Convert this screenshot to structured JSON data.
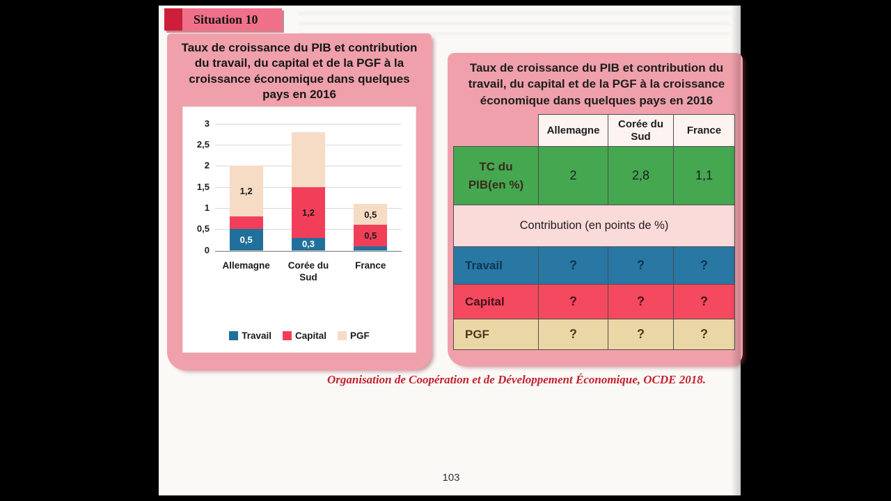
{
  "page": {
    "badge_label": "Situation 10",
    "source_line": "Organisation de Coopération et de Développement Économique, OCDE 2018.",
    "page_number": "103"
  },
  "chart_panel": {
    "title": "Taux de croissance du PIB et contribution du travail, du capital et de la PGF à la croissance économique dans quelques pays en 2016"
  },
  "chart_data": {
    "type": "bar",
    "stacked": true,
    "title": "Taux de croissance du PIB et contribution du travail, du capital et de la PGF à la croissance économique dans quelques pays en 2016",
    "categories": [
      "Allemagne",
      "Corée du Sud",
      "France"
    ],
    "series": [
      {
        "name": "Travail",
        "color": "#21709b",
        "label_color": "#ffffff",
        "values": [
          0.5,
          0.3,
          0.1
        ],
        "labels": [
          "0,5",
          "0,3",
          ""
        ]
      },
      {
        "name": "Capital",
        "color": "#f23f59",
        "label_color": "#1a1a1a",
        "values": [
          0.3,
          1.2,
          0.5
        ],
        "labels": [
          "",
          "1,2",
          "0,5"
        ]
      },
      {
        "name": "PGF",
        "color": "#f6dbc5",
        "label_color": "#1a1a1a",
        "values": [
          1.2,
          1.3,
          0.5
        ],
        "labels": [
          "1,2",
          "",
          "0,5"
        ]
      }
    ],
    "totals": [
      2,
      2.8,
      1.1
    ],
    "ylim": [
      0,
      3
    ],
    "yticks": [
      "3",
      "2,5",
      "2",
      "1,5",
      "1",
      "0,5",
      "0"
    ],
    "grid": true,
    "legend_position": "bottom"
  },
  "table_panel": {
    "title": "Taux de croissance du PIB et contribution du travail, du capital et de la PGF à la croissance économique dans quelques pays en 2016",
    "header": [
      "Allemagne",
      "Corée du Sud",
      "France"
    ],
    "tc_row": {
      "label": "TC du PIB(en %)",
      "values": [
        "2",
        "2,8",
        "1,1"
      ],
      "color": "#45a750"
    },
    "contribution_label": "Contribution (en points de %)",
    "contribution_color": "#fadbd9",
    "rows": [
      {
        "label": "Travail",
        "values": [
          "?",
          "?",
          "?"
        ],
        "color": "#2878a3"
      },
      {
        "label": "Capital",
        "values": [
          "?",
          "?",
          "?"
        ],
        "color": "#f4495f"
      },
      {
        "label": "PGF",
        "values": [
          "?",
          "?",
          "?"
        ],
        "color": "#ebd7a6"
      }
    ]
  }
}
